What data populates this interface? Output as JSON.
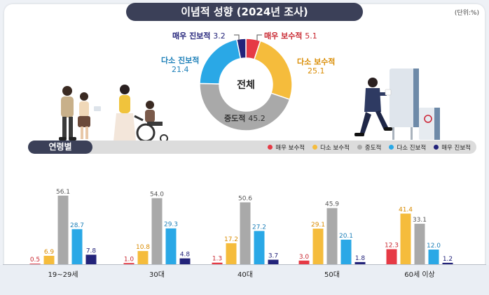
{
  "header": {
    "title": "이념적 성향 (2024년 조사)",
    "unit": "(단위:%)"
  },
  "colors": {
    "very_conservative": "#e63a45",
    "somewhat_conservative": "#f5bc3c",
    "moderate": "#a9a9a9",
    "somewhat_progressive": "#2aa8e6",
    "very_progressive": "#23237a"
  },
  "icons": [
    "family-walking-illustration",
    "wheelchair-illustration",
    "voter-ballot-illustration"
  ],
  "pie": {
    "center_label": "전체",
    "slices": [
      {
        "key": "very_conservative",
        "label": "매우 보수적",
        "value": 5.1
      },
      {
        "key": "somewhat_conservative",
        "label": "다소 보수적",
        "value": 25.1
      },
      {
        "key": "moderate",
        "label": "중도적",
        "value": 45.2
      },
      {
        "key": "somewhat_progressive",
        "label": "다소 진보적",
        "value": 21.4
      },
      {
        "key": "very_progressive",
        "label": "매우 진보적",
        "value": 3.2
      }
    ]
  },
  "age_label": "연령별",
  "legend": [
    "매우 보수적",
    "다소 보수적",
    "중도적",
    "다소 진보적",
    "매우 진보적"
  ],
  "chart_data": [
    {
      "type": "pie",
      "title": "전체",
      "categories": [
        "매우 보수적",
        "다소 보수적",
        "중도적",
        "다소 진보적",
        "매우 진보적"
      ],
      "values": [
        5.1,
        25.1,
        45.2,
        21.4,
        3.2
      ]
    },
    {
      "type": "bar",
      "title": "연령별",
      "categories": [
        "19~29세",
        "30대",
        "40대",
        "50대",
        "60세 이상"
      ],
      "series": [
        {
          "name": "매우 보수적",
          "values": [
            0.5,
            1.0,
            1.3,
            3.0,
            12.3
          ]
        },
        {
          "name": "다소 보수적",
          "values": [
            6.9,
            10.8,
            17.2,
            29.1,
            41.4
          ]
        },
        {
          "name": "중도적",
          "values": [
            56.1,
            54.0,
            50.6,
            45.9,
            33.1
          ]
        },
        {
          "name": "다소 진보적",
          "values": [
            28.7,
            29.3,
            27.2,
            20.1,
            12.0
          ]
        },
        {
          "name": "매우 진보적",
          "values": [
            7.8,
            4.8,
            3.7,
            1.8,
            1.2
          ]
        }
      ],
      "ylim": [
        0,
        60
      ],
      "grid": false,
      "legend": "top-right"
    }
  ]
}
